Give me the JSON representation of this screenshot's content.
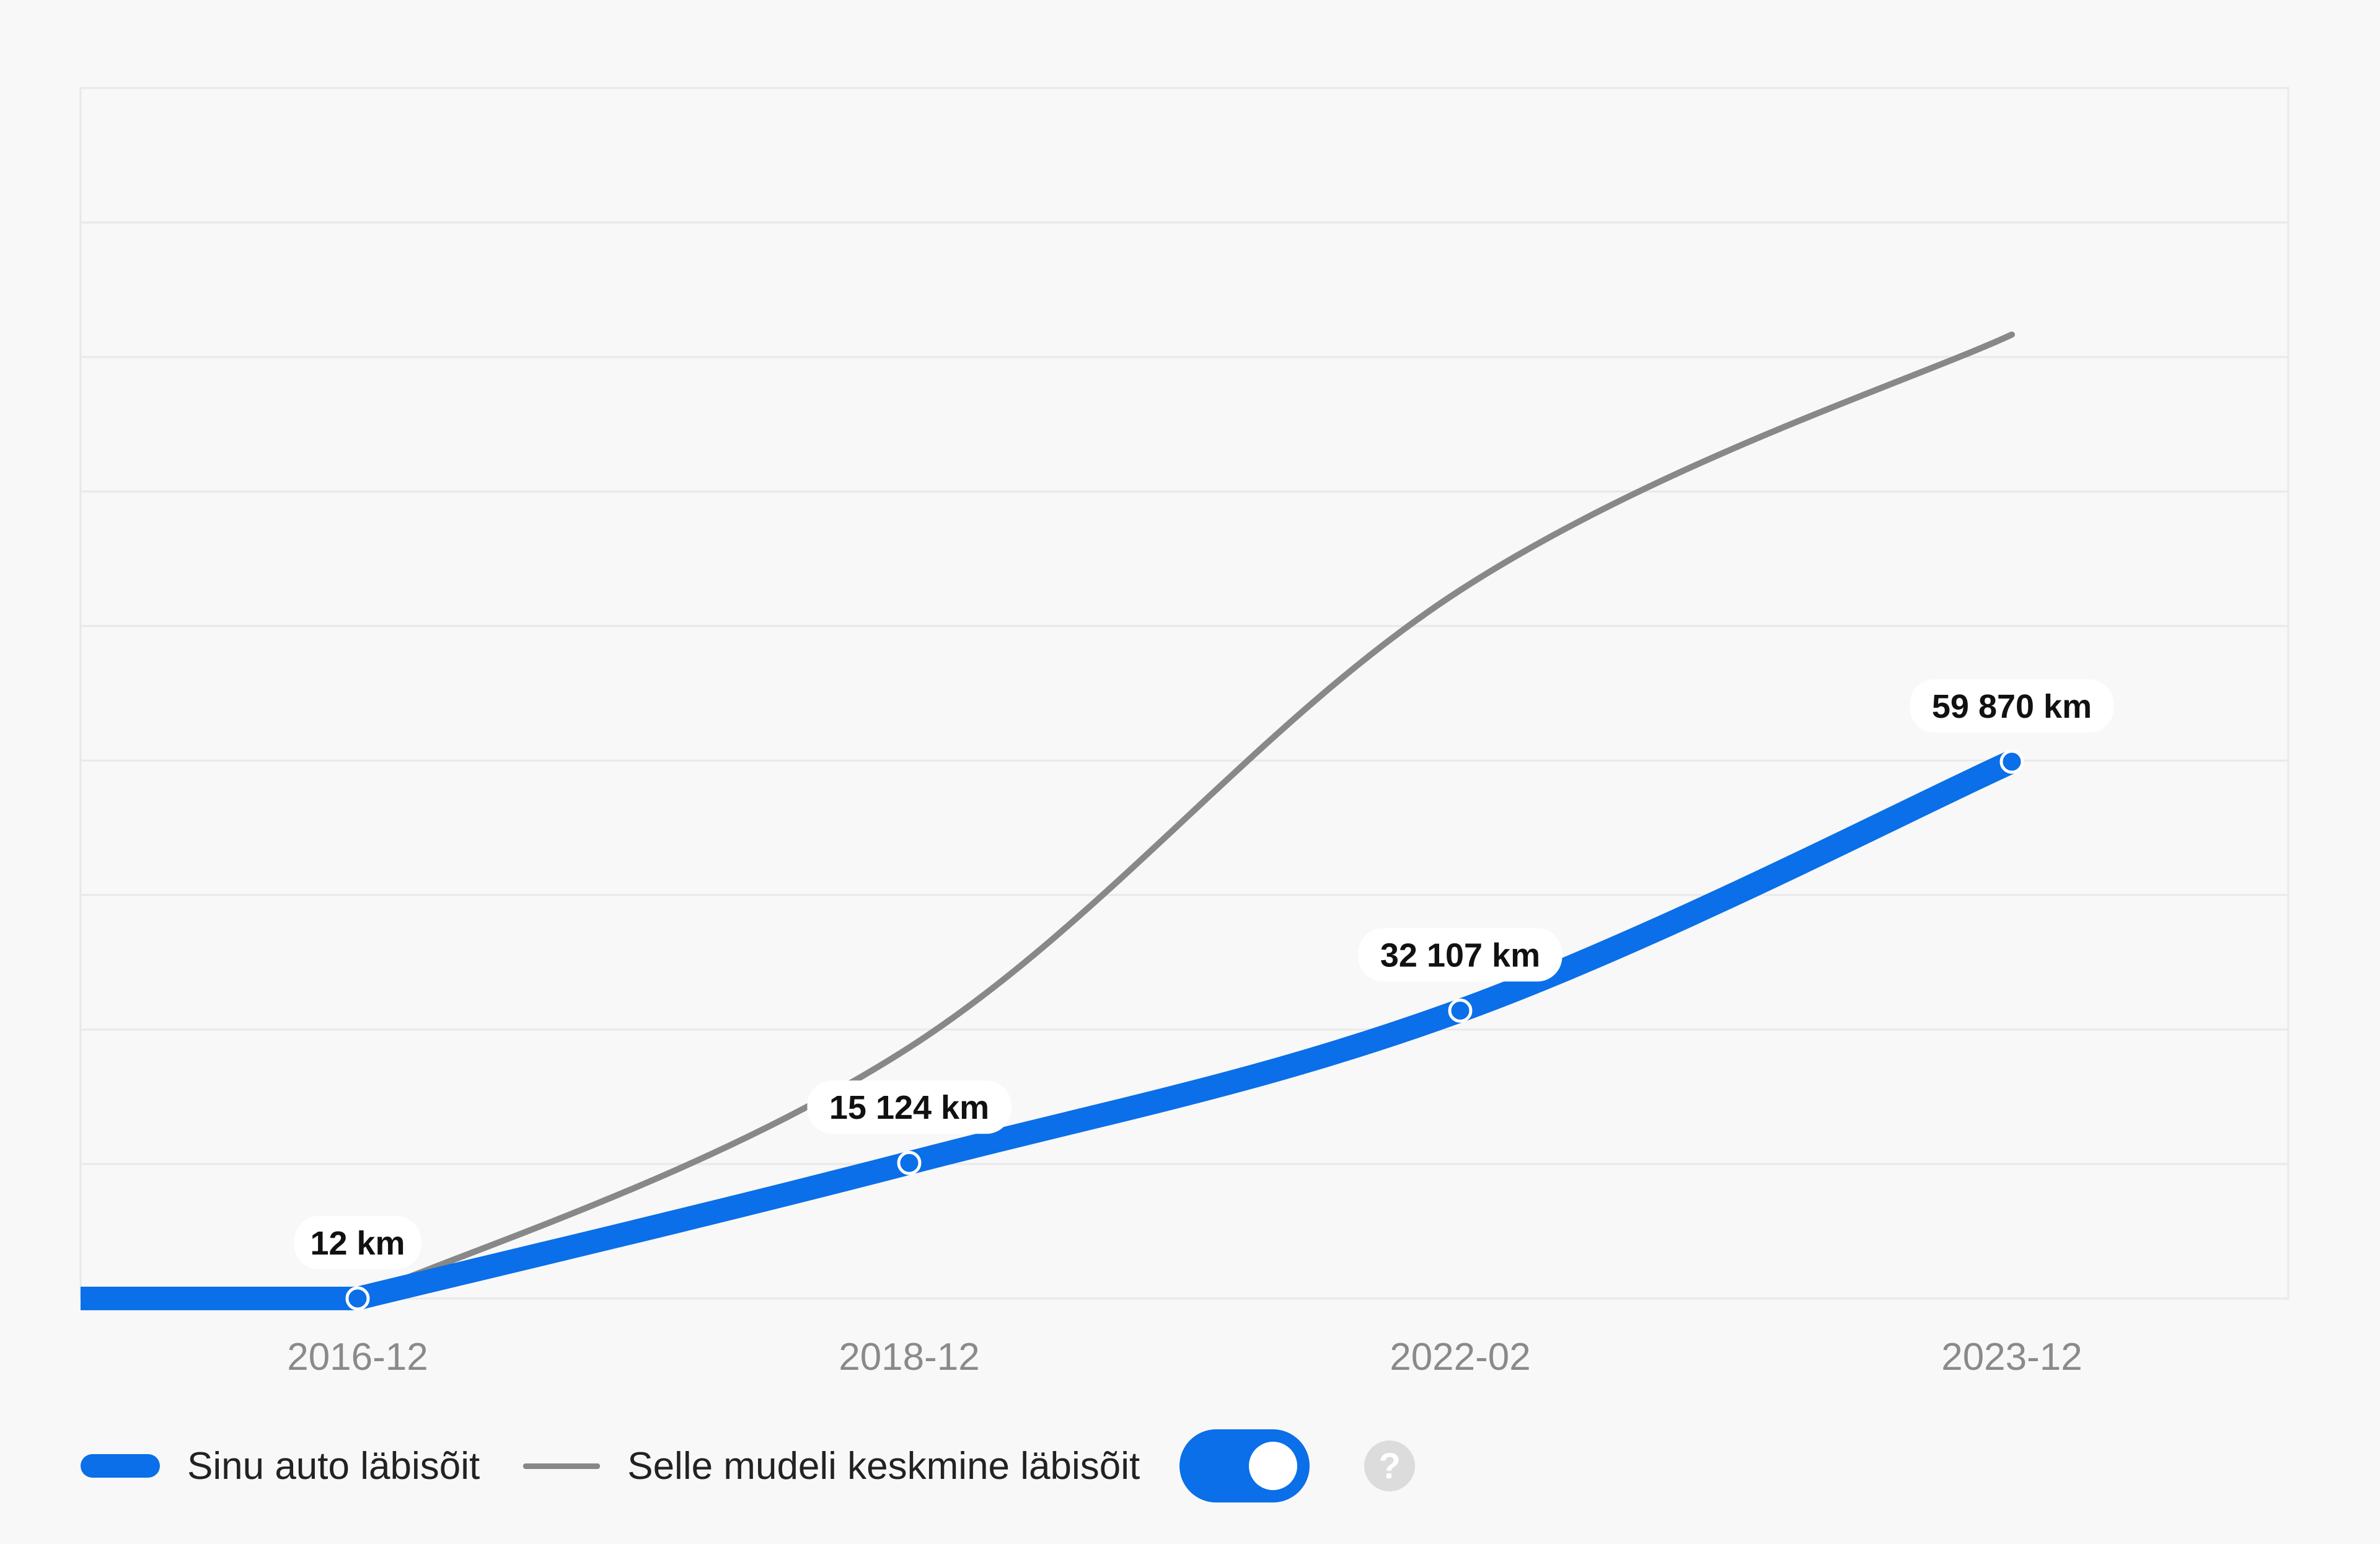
{
  "chart_data": {
    "type": "line",
    "title": "",
    "xlabel": "",
    "ylabel": "",
    "x": [
      "2016-12",
      "2018-12",
      "2022-02",
      "2023-12"
    ],
    "ylim": [
      0,
      135000
    ],
    "grid": true,
    "legend_placement": "bottom-left",
    "series": [
      {
        "name": "Sinu auto läbisõit",
        "color": "#0a6fe8",
        "values": [
          12,
          15124,
          32107,
          59870
        ],
        "data_labels": [
          "12 km",
          "15 124 km",
          "32 107 km",
          "59 870 km"
        ]
      },
      {
        "name": "Selle mudeli keskmine läbisõit",
        "color": "#888888",
        "values": [
          12,
          28000,
          79000,
          107500
        ]
      }
    ]
  },
  "legend": {
    "toggle_on": true,
    "toggle_color": "#0a6fe8",
    "help_icon": "question-mark-icon",
    "help_glyph": "?"
  }
}
